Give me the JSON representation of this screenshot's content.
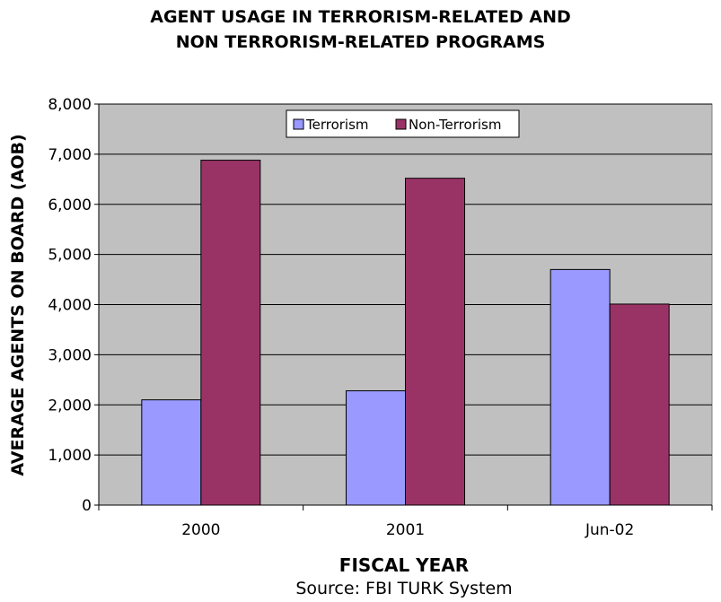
{
  "chart_data": {
    "type": "bar",
    "title_lines": [
      "AGENT USAGE IN TERRORISM-RELATED AND",
      "NON TERRORISM-RELATED PROGRAMS"
    ],
    "xlabel": "FISCAL YEAR",
    "ylabel": "AVERAGE AGENTS ON BOARD (AOB)",
    "source": "Source:  FBI TURK System",
    "categories": [
      "2000",
      "2001",
      "Jun-02"
    ],
    "series": [
      {
        "name": "Terrorism",
        "values": [
          2100,
          2280,
          4700
        ],
        "color": "#9999ff"
      },
      {
        "name": "Non-Terrorism",
        "values": [
          6880,
          6520,
          4010
        ],
        "color": "#993366"
      }
    ],
    "ylim": [
      0,
      8000
    ],
    "yticks": [
      0,
      1000,
      2000,
      3000,
      4000,
      5000,
      6000,
      7000,
      8000
    ],
    "ytick_labels": [
      "0",
      "1,000",
      "2,000",
      "3,000",
      "4,000",
      "5,000",
      "6,000",
      "7,000",
      "8,000"
    ],
    "grid": true,
    "legend_position": "top-center",
    "plot_background": "#c0c0c0"
  }
}
